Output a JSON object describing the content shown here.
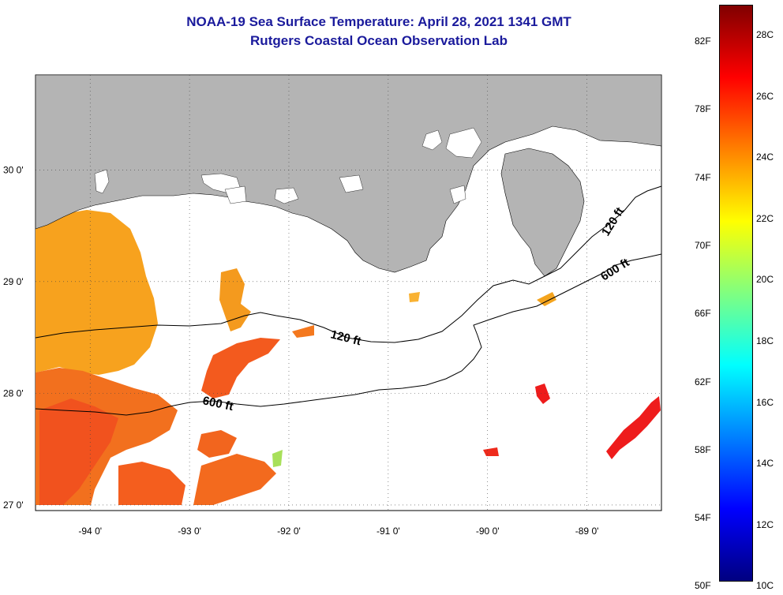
{
  "header": {
    "title_line1": "NOAA-19 Sea Surface Temperature:  April 28, 2021 1341 GMT",
    "title_line2": "Rutgers Coastal Ocean Observation Lab"
  },
  "axes": {
    "lat_labels": [
      "30 0'",
      "29 0'",
      "28 0'",
      "27 0'"
    ],
    "lon_labels": [
      "-94 0'",
      "-93 0'",
      "-92 0'",
      "-91 0'",
      "-90 0'",
      "-89 0'"
    ],
    "lat_values": [
      30,
      29,
      28,
      27
    ],
    "lon_values": [
      -94,
      -93,
      -92,
      -91,
      -90,
      -89
    ],
    "lat_range": [
      26.95,
      30.85
    ],
    "lon_range": [
      -94.55,
      -88.25
    ]
  },
  "contours": {
    "label_120": "120 ft",
    "label_600": "600 ft"
  },
  "colorbar": {
    "fahrenheit_labels": [
      "82F",
      "78F",
      "74F",
      "70F",
      "66F",
      "62F",
      "58F",
      "54F",
      "50F"
    ],
    "celsius_labels": [
      "28C",
      "26C",
      "24C",
      "22C",
      "20C",
      "18C",
      "16C",
      "14C",
      "12C",
      "10C"
    ],
    "gradient_colors": [
      "#800000",
      "#ff0000",
      "#ff8000",
      "#ffff00",
      "#80ff80",
      "#00ffff",
      "#0080ff",
      "#0000ff",
      "#000080"
    ]
  },
  "colors": {
    "land": "#b4b4b4",
    "title": "#1a1a9c",
    "sst_orange": "#f7931e",
    "sst_red_orange": "#f55a1e",
    "sst_red": "#ef1c1c",
    "sst_yellow_orange": "#f9b233"
  }
}
